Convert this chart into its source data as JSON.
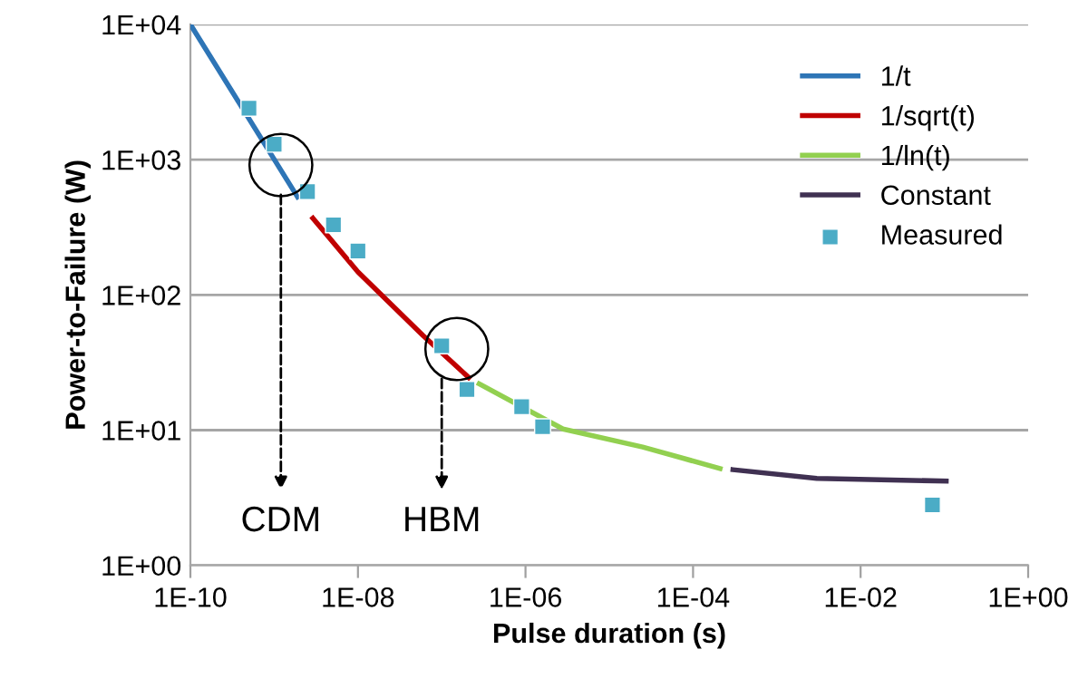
{
  "chart_data": {
    "type": "line",
    "xlabel": "Pulse duration (s)",
    "ylabel": "Power-to-Failure (W)",
    "log": "xy",
    "grid": "y",
    "legend": "top right",
    "xlim": [
      1e-10,
      1
    ],
    "ylim": [
      1,
      10000
    ],
    "xticks": [
      {
        "value": 1e-10,
        "label": "1E-10"
      },
      {
        "value": 1e-08,
        "label": "1E-08"
      },
      {
        "value": 1e-06,
        "label": "1E-06"
      },
      {
        "value": 0.0001,
        "label": "1E-04"
      },
      {
        "value": 0.01,
        "label": "1E-02"
      },
      {
        "value": 1,
        "label": "1E+00"
      }
    ],
    "yticks": [
      {
        "value": 1,
        "label": "1E+00"
      },
      {
        "value": 10,
        "label": "1E+01"
      },
      {
        "value": 100,
        "label": "1E+02"
      },
      {
        "value": 1000,
        "label": "1E+03"
      },
      {
        "value": 10000,
        "label": "1E+04"
      }
    ],
    "series": [
      {
        "name": "1/t",
        "color": "#2e75b6",
        "marker": "none",
        "x": [
          1e-10,
          1.9e-09
        ],
        "values": [
          10000,
          530
        ]
      },
      {
        "name": "1/sqrt(t)",
        "color": "#c00000",
        "marker": "none",
        "x": [
          2.9e-09,
          1e-08,
          6e-08,
          2.1e-07
        ],
        "values": [
          369,
          148,
          50,
          24.5
        ]
      },
      {
        "name": "1/ln(t)",
        "color": "#92d050",
        "marker": "none",
        "x": [
          2.8e-07,
          2.8e-06,
          2.5e-05,
          0.00021
        ],
        "values": [
          22,
          10.2,
          7.5,
          5.2
        ]
      },
      {
        "name": "Constant",
        "color": "#403152",
        "marker": "none",
        "x": [
          0.0003,
          0.003,
          0.105
        ],
        "values": [
          5.1,
          4.4,
          4.2
        ]
      },
      {
        "name": "Measured",
        "type": "scatter",
        "color": "#4bacc6",
        "marker": "square",
        "x": [
          5e-10,
          1e-09,
          2.5e-09,
          5.1e-09,
          1e-08,
          1e-07,
          2e-07,
          9e-07,
          1.6e-06,
          0.072
        ],
        "values": [
          2400,
          1300,
          580,
          330,
          211,
          42,
          20,
          14.9,
          10.6,
          2.8
        ]
      }
    ],
    "annotations": [
      "CDM",
      "HBM"
    ]
  }
}
